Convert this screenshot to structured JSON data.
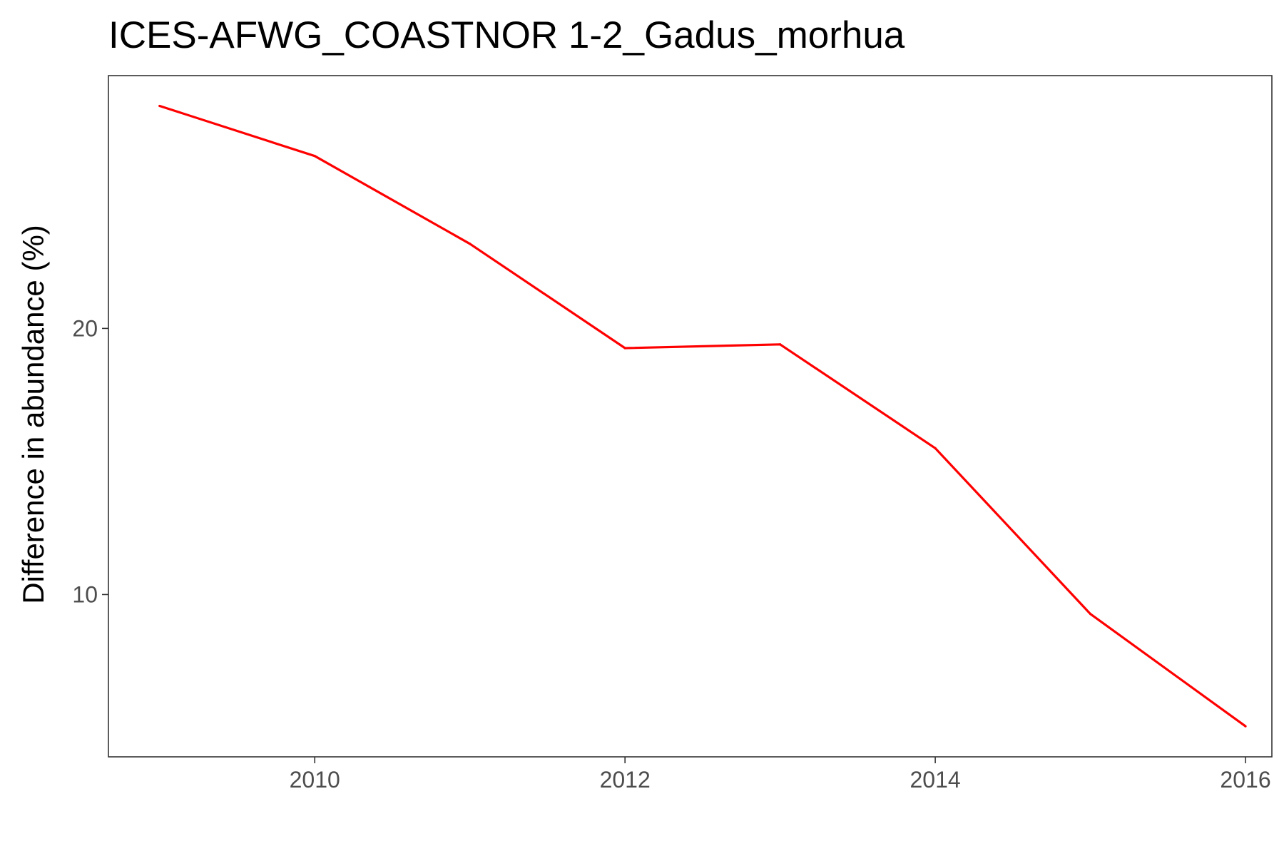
{
  "chart_data": {
    "type": "line",
    "title": "ICES-AFWG_COASTNOR 1-2_Gadus_morhua",
    "xlabel": "",
    "ylabel": "Difference in abundance (%)",
    "xlim": [
      2008.67,
      2016.17
    ],
    "ylim": [
      3.9,
      29.5
    ],
    "x_ticks": [
      2010,
      2012,
      2014,
      2016
    ],
    "y_ticks": [
      10,
      20
    ],
    "grid": false,
    "legend": "none",
    "series": [
      {
        "color": "#ff0000",
        "x": [
          2009,
          2010,
          2011,
          2012,
          2013,
          2014,
          2015,
          2016
        ],
        "y": [
          28.36,
          26.48,
          23.18,
          19.26,
          19.4,
          15.5,
          9.27,
          5.05
        ]
      }
    ]
  }
}
